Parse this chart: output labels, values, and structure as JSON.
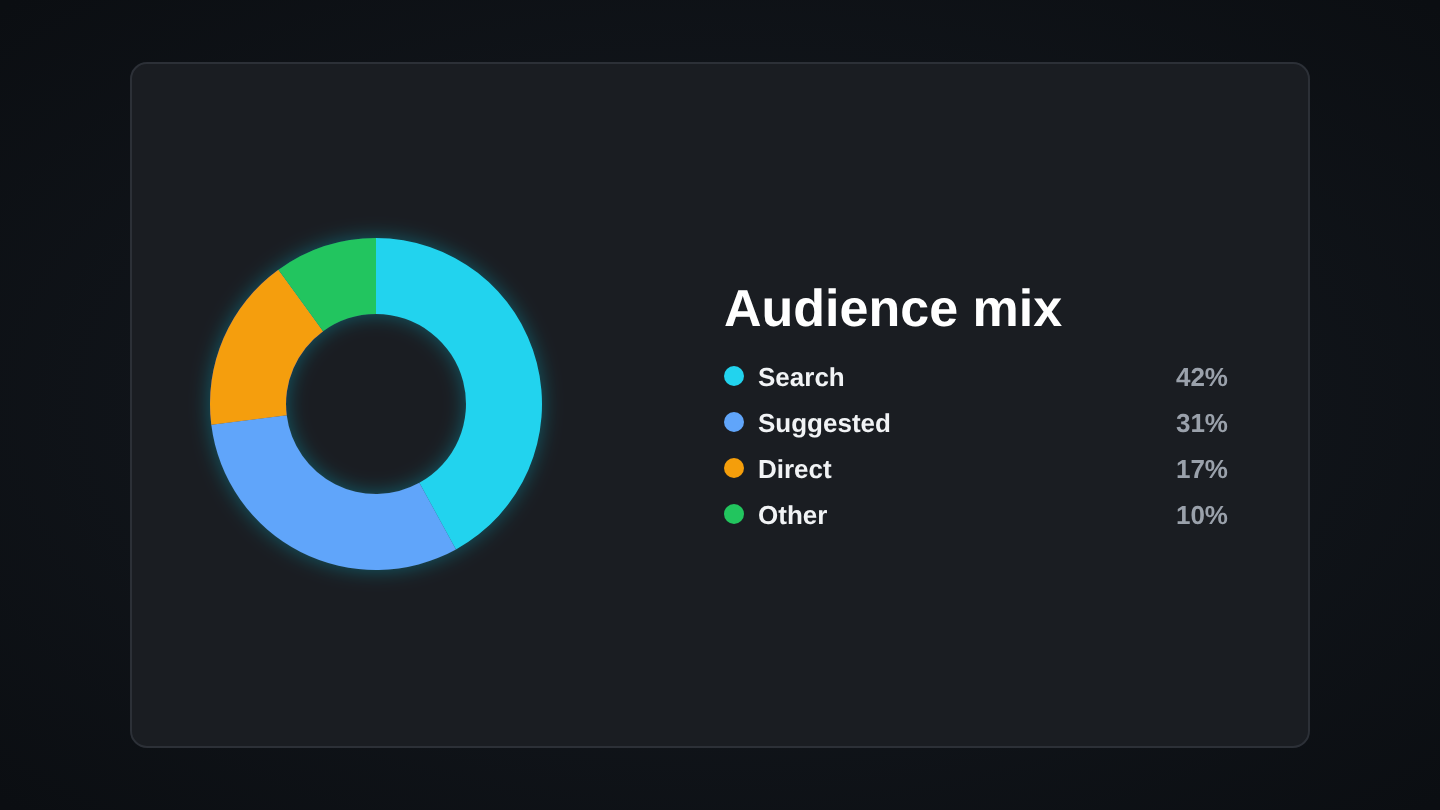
{
  "chart_data": {
    "type": "donut",
    "title": "Audience mix",
    "categories": [
      "Search",
      "Suggested",
      "Direct",
      "Other"
    ],
    "values": [
      42,
      31,
      17,
      10
    ],
    "colors": [
      "#22d3ee",
      "#60a5fa",
      "#f59e0b",
      "#22c55e"
    ],
    "value_labels": [
      "42%",
      "31%",
      "17%",
      "10%"
    ],
    "legend": "right"
  }
}
